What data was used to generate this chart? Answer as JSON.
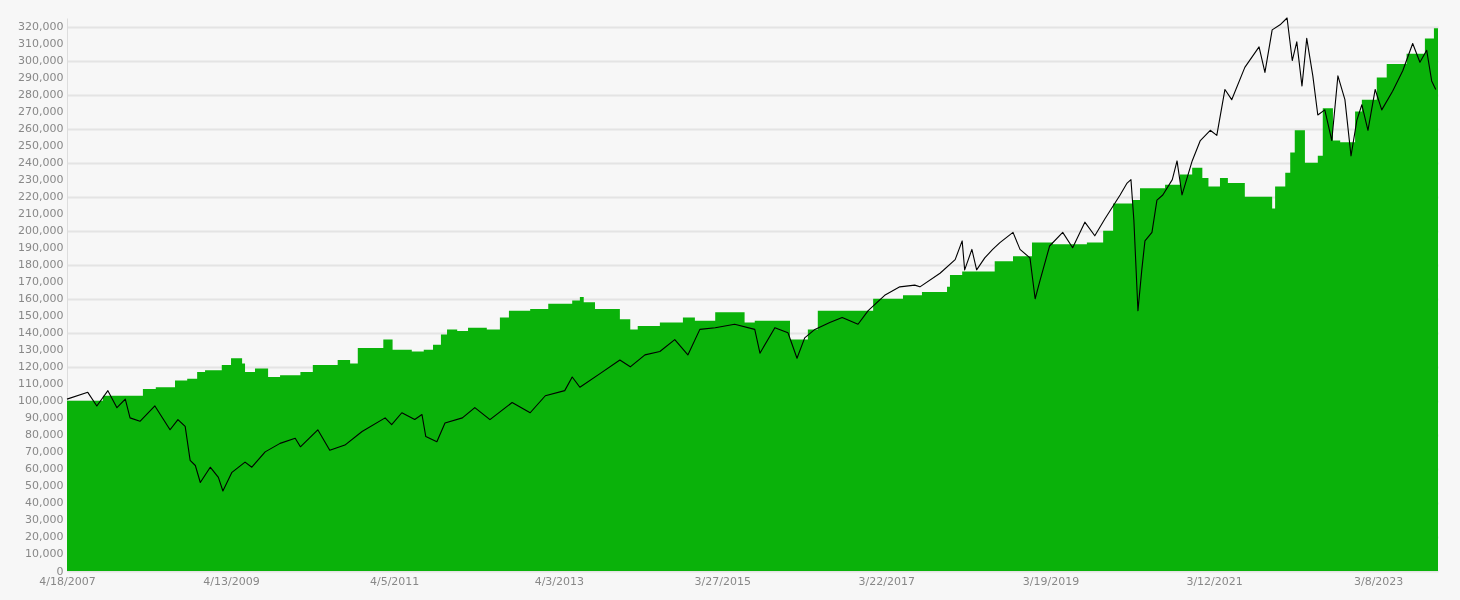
{
  "chart_data": {
    "type": "line",
    "xlim": [
      "2007-04-18",
      "2023-11-28"
    ],
    "xticks": [
      {
        "value": "2007-04-18",
        "label": "4/18/2007"
      },
      {
        "value": "2009-04-13",
        "label": "4/13/2009"
      },
      {
        "value": "2011-04-05",
        "label": "4/5/2011"
      },
      {
        "value": "2013-04-03",
        "label": "4/3/2013"
      },
      {
        "value": "2015-03-27",
        "label": "3/27/2015"
      },
      {
        "value": "2017-03-22",
        "label": "3/22/2017"
      },
      {
        "value": "2019-03-19",
        "label": "3/19/2019"
      },
      {
        "value": "2021-03-12",
        "label": "3/12/2021"
      },
      {
        "value": "2023-03-08",
        "label": "3/8/2023"
      }
    ],
    "ylim": [
      0,
      325000
    ],
    "yticks": [
      0,
      {
        "value": 10000,
        "label": "10,000"
      },
      {
        "value": 20000,
        "label": "20,000"
      },
      {
        "value": 30000,
        "label": "30,000"
      },
      {
        "value": 40000,
        "label": "40,000"
      },
      {
        "value": 50000,
        "label": "50,000"
      },
      {
        "value": 60000,
        "label": "60,000"
      },
      {
        "value": 70000,
        "label": "70,000"
      },
      {
        "value": 80000,
        "label": "80,000"
      },
      {
        "value": 90000,
        "label": "90,000"
      },
      {
        "value": 100000,
        "label": "100,000"
      },
      {
        "value": 110000,
        "label": "110,000"
      },
      {
        "value": 120000,
        "label": "120,000"
      },
      {
        "value": 130000,
        "label": "130,000"
      },
      {
        "value": 140000,
        "label": "140,000"
      },
      {
        "value": 150000,
        "label": "150,000"
      },
      {
        "value": 160000,
        "label": "160,000"
      },
      {
        "value": 170000,
        "label": "170,000"
      },
      {
        "value": 180000,
        "label": "180,000"
      },
      {
        "value": 190000,
        "label": "190,000"
      },
      {
        "value": 200000,
        "label": "200,000"
      },
      {
        "value": 210000,
        "label": "210,000"
      },
      {
        "value": 220000,
        "label": "220,000"
      },
      {
        "value": 230000,
        "label": "230,000"
      },
      {
        "value": 240000,
        "label": "240,000"
      },
      {
        "value": 250000,
        "label": "250,000"
      },
      {
        "value": 260000,
        "label": "260,000"
      },
      {
        "value": 270000,
        "label": "270,000"
      },
      {
        "value": 280000,
        "label": "280,000"
      },
      {
        "value": 290000,
        "label": "290,000"
      },
      {
        "value": 300000,
        "label": "300,000"
      },
      {
        "value": 310000,
        "label": "310,000"
      },
      {
        "value": 320000,
        "label": "320,000"
      }
    ],
    "grid": "y",
    "series": [
      {
        "type": "area",
        "color": "#0ab20a",
        "x": [
          "2007-04-18",
          "2007-09-24",
          "2008-03-19",
          "2008-05-15",
          "2008-08-08",
          "2008-10-01",
          "2008-11-14",
          "2008-12-19",
          "2009-03-03",
          "2009-04-13",
          "2009-06-01",
          "2009-06-14",
          "2009-07-28",
          "2009-09-24",
          "2009-11-16",
          "2010-02-14",
          "2010-04-10",
          "2010-07-29",
          "2010-09-22",
          "2010-10-26",
          "2011-02-16",
          "2011-03-29",
          "2011-06-22",
          "2011-08-14",
          "2011-09-24",
          "2011-10-29",
          "2011-11-25",
          "2012-01-09",
          "2012-02-26",
          "2012-05-19",
          "2012-07-16",
          "2012-08-25",
          "2012-11-27",
          "2013-02-15",
          "2013-06-01",
          "2013-07-05",
          "2013-07-22",
          "2013-09-10",
          "2013-12-29",
          "2014-02-13",
          "2014-03-18",
          "2014-06-24",
          "2014-10-04",
          "2014-11-26",
          "2015-02-24",
          "2015-07-04",
          "2015-08-18",
          "2016-01-21",
          "2016-04-09",
          "2016-05-23",
          "2017-01-23",
          "2017-06-04",
          "2017-08-27",
          "2017-12-16",
          "2017-12-29",
          "2018-02-21",
          "2018-07-15",
          "2018-10-04",
          "2018-12-27",
          "2019-03-29",
          "2019-08-27",
          "2019-11-07",
          "2019-12-21",
          "2020-03-18",
          "2020-04-18",
          "2020-08-07",
          "2020-10-12",
          "2020-12-05",
          "2021-01-19",
          "2021-02-15",
          "2021-04-07",
          "2021-05-12",
          "2021-07-26",
          "2021-11-24",
          "2021-12-07",
          "2022-01-21",
          "2022-02-12",
          "2022-03-04",
          "2022-04-18",
          "2022-06-14",
          "2022-07-06",
          "2022-08-20",
          "2022-09-21",
          "2022-11-26",
          "2022-12-26",
          "2023-03-02",
          "2023-04-15",
          "2023-07-12",
          "2023-10-01",
          "2023-11-10",
          "2023-11-28"
        ],
        "values": [
          100000,
          103000,
          107000,
          108000,
          112000,
          113000,
          117000,
          118000,
          121000,
          125000,
          122000,
          117000,
          119000,
          114000,
          115000,
          117000,
          121000,
          124000,
          122000,
          131000,
          136000,
          130000,
          129000,
          130000,
          133000,
          139000,
          142000,
          141000,
          143000,
          142000,
          149000,
          153000,
          154000,
          157000,
          159000,
          161000,
          158000,
          154000,
          148000,
          142000,
          144000,
          146000,
          149000,
          147000,
          152000,
          146000,
          147000,
          136000,
          142000,
          153000,
          160000,
          162000,
          164000,
          167000,
          174000,
          176000,
          182000,
          185000,
          193000,
          192000,
          193000,
          200000,
          216000,
          218000,
          225000,
          227000,
          233000,
          237000,
          231000,
          226000,
          231000,
          228000,
          220000,
          213000,
          226000,
          234000,
          246000,
          259000,
          240000,
          244000,
          272000,
          253000,
          252000,
          270000,
          277000,
          290000,
          298000,
          304000,
          313000,
          319000,
          319000
        ]
      },
      {
        "type": "line",
        "color": "#000000",
        "x": [
          "2007-04-18",
          "2007-07-19",
          "2007-08-28",
          "2007-10-16",
          "2007-11-25",
          "2008-01-01",
          "2008-01-22",
          "2008-03-06",
          "2008-05-11",
          "2008-07-17",
          "2008-08-21",
          "2008-09-22",
          "2008-10-14",
          "2008-11-06",
          "2008-11-28",
          "2009-01-11",
          "2009-02-16",
          "2009-03-08",
          "2009-04-17",
          "2009-06-14",
          "2009-07-14",
          "2009-09-11",
          "2009-11-16",
          "2010-01-22",
          "2010-02-14",
          "2010-05-02",
          "2010-06-24",
          "2010-08-30",
          "2010-11-14",
          "2011-02-24",
          "2011-03-25",
          "2011-05-09",
          "2011-07-05",
          "2011-08-06",
          "2011-08-23",
          "2011-10-11",
          "2011-11-16",
          "2012-02-01",
          "2012-03-27",
          "2012-06-02",
          "2012-09-08",
          "2012-11-27",
          "2013-02-02",
          "2013-04-29",
          "2013-06-01",
          "2013-07-05",
          "2013-10-02",
          "2013-12-29",
          "2014-02-13",
          "2014-04-19",
          "2014-06-24",
          "2014-08-29",
          "2014-10-26",
          "2014-12-18",
          "2015-02-24",
          "2015-05-21",
          "2015-08-18",
          "2015-09-10",
          "2015-11-15",
          "2016-01-12",
          "2016-02-21",
          "2016-03-26",
          "2016-05-10",
          "2016-07-15",
          "2016-09-08",
          "2016-11-17",
          "2017-01-01",
          "2017-03-15",
          "2017-05-21",
          "2017-07-26",
          "2017-08-18",
          "2017-11-15",
          "2018-01-21",
          "2018-02-21",
          "2018-03-04",
          "2018-04-05",
          "2018-04-26",
          "2018-06-01",
          "2018-07-06",
          "2018-08-07",
          "2018-10-04",
          "2018-11-04",
          "2018-12-18",
          "2019-01-10",
          "2019-02-01",
          "2019-03-15",
          "2019-05-12",
          "2019-06-25",
          "2019-08-18",
          "2019-10-01",
          "2019-11-15",
          "2020-01-21",
          "2020-02-21",
          "2020-03-09",
          "2020-03-22",
          "2020-04-09",
          "2020-04-26",
          "2020-05-10",
          "2020-06-10",
          "2020-07-02",
          "2020-07-28",
          "2020-09-08",
          "2020-09-29",
          "2020-10-21",
          "2020-12-05",
          "2021-01-10",
          "2021-02-23",
          "2021-03-24",
          "2021-04-29",
          "2021-05-29",
          "2021-07-26",
          "2021-09-27",
          "2021-10-23",
          "2021-11-24",
          "2021-12-29",
          "2022-01-29",
          "2022-02-21",
          "2022-03-13",
          "2022-04-05",
          "2022-04-26",
          "2022-05-23",
          "2022-06-14",
          "2022-07-15",
          "2022-08-15",
          "2022-09-11",
          "2022-10-12",
          "2022-11-08",
          "2022-12-04",
          "2022-12-26",
          "2023-01-22",
          "2023-02-23",
          "2023-03-24",
          "2023-05-11",
          "2023-06-25",
          "2023-08-08",
          "2023-09-09",
          "2023-10-09",
          "2023-10-31",
          "2023-11-18"
        ],
        "values": [
          101000,
          105000,
          97000,
          106000,
          96000,
          101000,
          90000,
          88000,
          97000,
          83000,
          89000,
          85000,
          65000,
          62000,
          52000,
          61000,
          55000,
          47000,
          58000,
          64000,
          61000,
          70000,
          75000,
          78000,
          73000,
          83000,
          71000,
          74000,
          82000,
          90000,
          86000,
          93000,
          89000,
          92000,
          79000,
          76000,
          87000,
          90000,
          96000,
          89000,
          99000,
          93000,
          103000,
          106000,
          114000,
          108000,
          116000,
          124000,
          120000,
          127000,
          129000,
          136000,
          127000,
          142000,
          143000,
          145000,
          142000,
          128000,
          143000,
          140000,
          125000,
          137000,
          142000,
          146000,
          149000,
          145000,
          153000,
          162000,
          167000,
          168000,
          167000,
          175000,
          183000,
          194000,
          177000,
          189000,
          177000,
          184000,
          189000,
          193000,
          199000,
          189000,
          184000,
          160000,
          171000,
          191000,
          199000,
          190000,
          205000,
          197000,
          207000,
          221000,
          228000,
          230000,
          206000,
          153000,
          177000,
          194000,
          199000,
          218000,
          221000,
          230000,
          241000,
          221000,
          241000,
          253000,
          259000,
          256000,
          283000,
          277000,
          296000,
          308000,
          293000,
          318000,
          321000,
          325000,
          300000,
          311000,
          285000,
          313000,
          291000,
          268000,
          271000,
          253000,
          291000,
          277000,
          244000,
          265000,
          274000,
          259000,
          283000,
          271000,
          282000,
          294000,
          310000,
          299000,
          306000,
          288000,
          283000
        ]
      }
    ]
  }
}
